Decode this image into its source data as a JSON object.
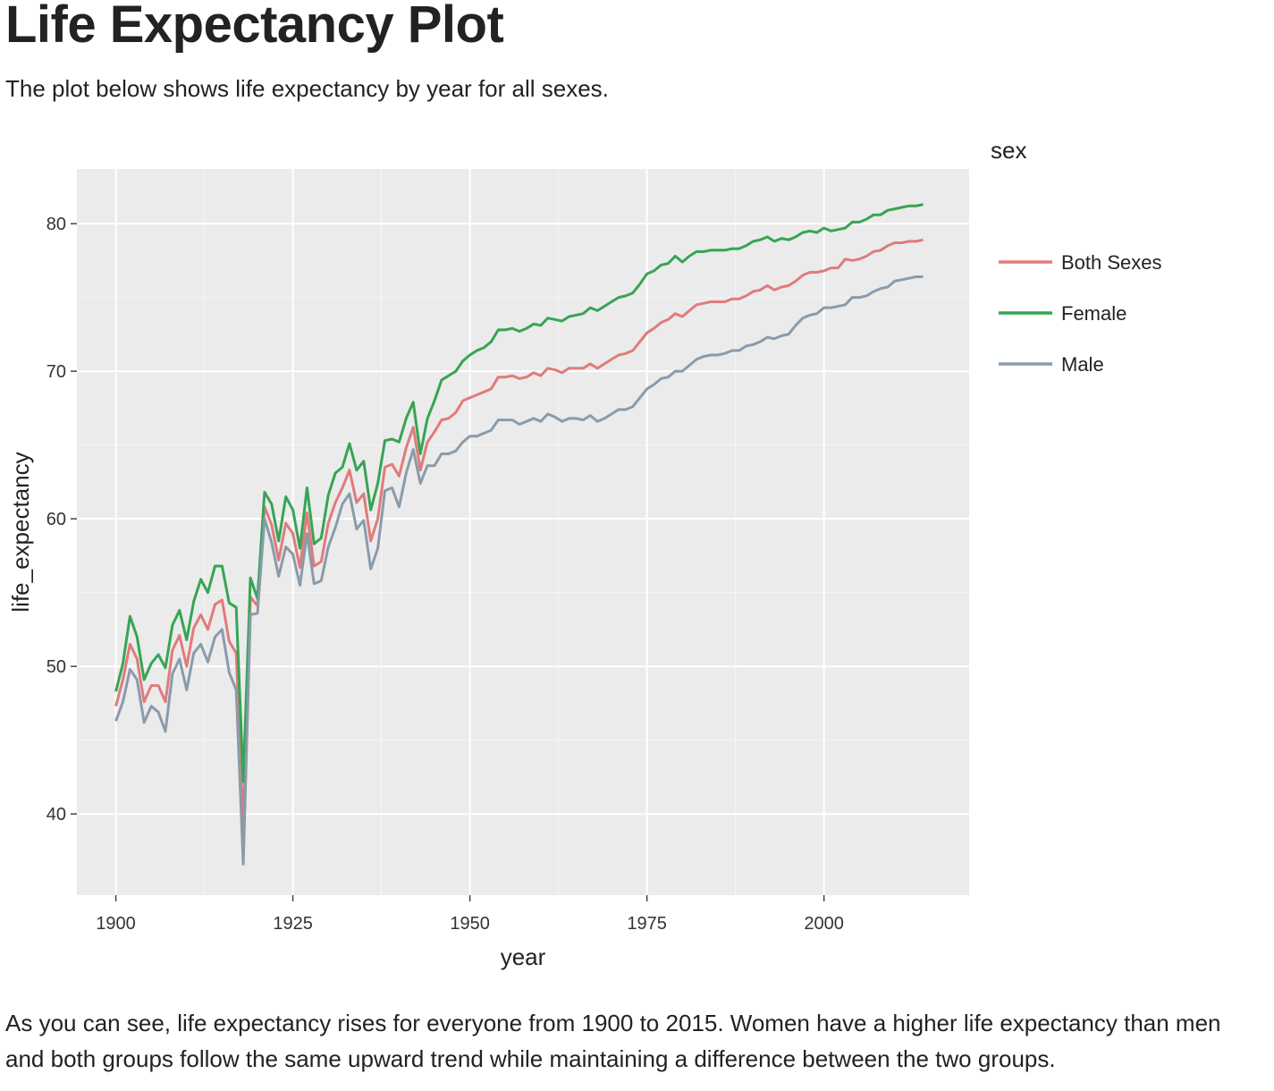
{
  "page": {
    "title": "Life Expectancy Plot",
    "intro": "The plot below shows life expectancy by year for all sexes.",
    "outro": "As you can see, life expectancy rises for everyone from 1900 to 2015. Women have a higher life expectancy than men and both groups follow the same upward trend while maintaining a difference between the two groups."
  },
  "chart_data": {
    "type": "line",
    "title": "",
    "xlabel": "year",
    "ylabel": "life_expectancy",
    "xlim": [
      1894.5,
      2020.5
    ],
    "ylim": [
      34.5,
      83.7
    ],
    "xticks": [
      1900,
      1925,
      1950,
      1975,
      2000
    ],
    "yticks": [
      40,
      50,
      60,
      70,
      80
    ],
    "grid": true,
    "background": "#ebebeb",
    "legend": {
      "title": "sex",
      "position": "right"
    },
    "x": [
      1900,
      1901,
      1902,
      1903,
      1904,
      1905,
      1906,
      1907,
      1908,
      1909,
      1910,
      1911,
      1912,
      1913,
      1914,
      1915,
      1916,
      1917,
      1918,
      1919,
      1920,
      1921,
      1922,
      1923,
      1924,
      1925,
      1926,
      1927,
      1928,
      1929,
      1930,
      1931,
      1932,
      1933,
      1934,
      1935,
      1936,
      1937,
      1938,
      1939,
      1940,
      1941,
      1942,
      1943,
      1944,
      1945,
      1946,
      1947,
      1948,
      1949,
      1950,
      1951,
      1952,
      1953,
      1954,
      1955,
      1956,
      1957,
      1958,
      1959,
      1960,
      1961,
      1962,
      1963,
      1964,
      1965,
      1966,
      1967,
      1968,
      1969,
      1970,
      1971,
      1972,
      1973,
      1974,
      1975,
      1976,
      1977,
      1978,
      1979,
      1980,
      1981,
      1982,
      1983,
      1984,
      1985,
      1986,
      1987,
      1988,
      1989,
      1990,
      1991,
      1992,
      1993,
      1994,
      1995,
      1996,
      1997,
      1998,
      1999,
      2000,
      2001,
      2002,
      2003,
      2004,
      2005,
      2006,
      2007,
      2008,
      2009,
      2010,
      2011,
      2012,
      2013,
      2014
    ],
    "series": [
      {
        "name": "Both Sexes",
        "color": "#e07b7b",
        "values": [
          47.3,
          49.1,
          51.5,
          50.5,
          47.6,
          48.7,
          48.7,
          47.6,
          51.1,
          52.1,
          50.0,
          52.6,
          53.5,
          52.5,
          54.2,
          54.5,
          51.7,
          50.9,
          39.1,
          54.7,
          54.1,
          60.8,
          59.6,
          57.2,
          59.7,
          59.0,
          56.7,
          60.4,
          56.8,
          57.1,
          59.7,
          61.1,
          62.1,
          63.3,
          61.1,
          61.7,
          58.5,
          60.0,
          63.5,
          63.7,
          62.9,
          64.8,
          66.2,
          63.3,
          65.2,
          65.9,
          66.7,
          66.8,
          67.2,
          68.0,
          68.2,
          68.4,
          68.6,
          68.8,
          69.6,
          69.6,
          69.7,
          69.5,
          69.6,
          69.9,
          69.7,
          70.2,
          70.1,
          69.9,
          70.2,
          70.2,
          70.2,
          70.5,
          70.2,
          70.5,
          70.8,
          71.1,
          71.2,
          71.4,
          72.0,
          72.6,
          72.9,
          73.3,
          73.5,
          73.9,
          73.7,
          74.1,
          74.5,
          74.6,
          74.7,
          74.7,
          74.7,
          74.9,
          74.9,
          75.1,
          75.4,
          75.5,
          75.8,
          75.5,
          75.7,
          75.8,
          76.1,
          76.5,
          76.7,
          76.7,
          76.8,
          77.0,
          77.0,
          77.6,
          77.5,
          77.6,
          77.8,
          78.1,
          78.2,
          78.5,
          78.7,
          78.7,
          78.8,
          78.8,
          78.9
        ]
      },
      {
        "name": "Female",
        "color": "#37a454",
        "values": [
          48.3,
          50.2,
          53.4,
          52.0,
          49.1,
          50.2,
          50.8,
          49.9,
          52.8,
          53.8,
          51.8,
          54.4,
          55.9,
          55.0,
          56.8,
          56.8,
          54.3,
          54.0,
          42.2,
          56.0,
          54.6,
          61.8,
          61.0,
          58.5,
          61.5,
          60.6,
          58.0,
          62.1,
          58.3,
          58.7,
          61.6,
          63.1,
          63.5,
          65.1,
          63.3,
          63.9,
          60.6,
          62.4,
          65.3,
          65.4,
          65.2,
          66.8,
          67.9,
          64.4,
          66.8,
          68.0,
          69.4,
          69.7,
          70.0,
          70.7,
          71.1,
          71.4,
          71.6,
          72.0,
          72.8,
          72.8,
          72.9,
          72.7,
          72.9,
          73.2,
          73.1,
          73.6,
          73.5,
          73.4,
          73.7,
          73.8,
          73.9,
          74.3,
          74.1,
          74.4,
          74.7,
          75.0,
          75.1,
          75.3,
          75.9,
          76.6,
          76.8,
          77.2,
          77.3,
          77.8,
          77.4,
          77.8,
          78.1,
          78.1,
          78.2,
          78.2,
          78.2,
          78.3,
          78.3,
          78.5,
          78.8,
          78.9,
          79.1,
          78.8,
          79.0,
          78.9,
          79.1,
          79.4,
          79.5,
          79.4,
          79.7,
          79.5,
          79.6,
          79.7,
          80.1,
          80.1,
          80.3,
          80.6,
          80.6,
          80.9,
          81.0,
          81.1,
          81.2,
          81.2,
          81.3
        ]
      },
      {
        "name": "Male",
        "color": "#8a9bab",
        "values": [
          46.3,
          47.6,
          49.8,
          49.1,
          46.2,
          47.3,
          46.9,
          45.6,
          49.5,
          50.5,
          48.4,
          50.9,
          51.5,
          50.3,
          52.0,
          52.5,
          49.6,
          48.4,
          36.6,
          53.5,
          53.6,
          60.0,
          58.4,
          56.1,
          58.1,
          57.6,
          55.5,
          59.0,
          55.6,
          55.8,
          58.1,
          59.4,
          61.0,
          61.7,
          59.3,
          59.9,
          56.6,
          58.0,
          61.9,
          62.1,
          60.8,
          63.1,
          64.7,
          62.4,
          63.6,
          63.6,
          64.4,
          64.4,
          64.6,
          65.2,
          65.6,
          65.6,
          65.8,
          66.0,
          66.7,
          66.7,
          66.7,
          66.4,
          66.6,
          66.8,
          66.6,
          67.1,
          66.9,
          66.6,
          66.8,
          66.8,
          66.7,
          67.0,
          66.6,
          66.8,
          67.1,
          67.4,
          67.4,
          67.6,
          68.2,
          68.8,
          69.1,
          69.5,
          69.6,
          70.0,
          70.0,
          70.4,
          70.8,
          71.0,
          71.1,
          71.1,
          71.2,
          71.4,
          71.4,
          71.7,
          71.8,
          72.0,
          72.3,
          72.2,
          72.4,
          72.5,
          73.1,
          73.6,
          73.8,
          73.9,
          74.3,
          74.3,
          74.4,
          74.5,
          75.0,
          75.0,
          75.1,
          75.4,
          75.6,
          75.7,
          76.1,
          76.2,
          76.3,
          76.4,
          76.4
        ]
      }
    ]
  }
}
